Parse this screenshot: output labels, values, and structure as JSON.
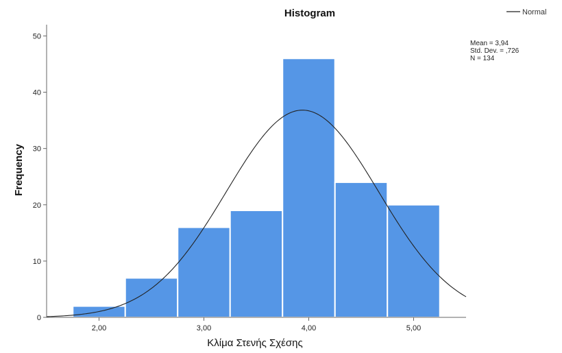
{
  "chart_data": {
    "type": "bar",
    "title": "Histogram",
    "xlabel": "Κλίμα Στενής Σχέσης",
    "ylabel": "Frequency",
    "bins": [
      {
        "x0": 1.75,
        "x1": 2.25,
        "count": 2
      },
      {
        "x0": 2.25,
        "x1": 2.75,
        "count": 7
      },
      {
        "x0": 2.75,
        "x1": 3.25,
        "count": 16
      },
      {
        "x0": 3.25,
        "x1": 3.75,
        "count": 19
      },
      {
        "x0": 3.75,
        "x1": 4.25,
        "count": 46
      },
      {
        "x0": 4.25,
        "x1": 4.75,
        "count": 24
      },
      {
        "x0": 4.75,
        "x1": 5.25,
        "count": 20
      }
    ],
    "xlim": [
      1.5,
      5.5
    ],
    "ylim": [
      0,
      52
    ],
    "x_ticks": [
      2.0,
      3.0,
      4.0,
      5.0
    ],
    "x_tick_labels": [
      "2,00",
      "3,00",
      "4,00",
      "5,00"
    ],
    "y_ticks": [
      0,
      10,
      20,
      30,
      40,
      50
    ],
    "y_tick_labels": [
      "0",
      "10",
      "20",
      "30",
      "40",
      "50"
    ],
    "bar_color": "#5596e6",
    "normal_curve": {
      "name": "Normal",
      "mean": 3.94,
      "std_dev": 0.726,
      "n": 134,
      "bin_width": 0.5,
      "color": "#222222"
    },
    "stats_text": [
      "Mean = 3,94",
      "Std. Dev. = ,726",
      "N = 134"
    ],
    "legend": {
      "label": "Normal",
      "placement": "top-right"
    },
    "grid": false
  }
}
